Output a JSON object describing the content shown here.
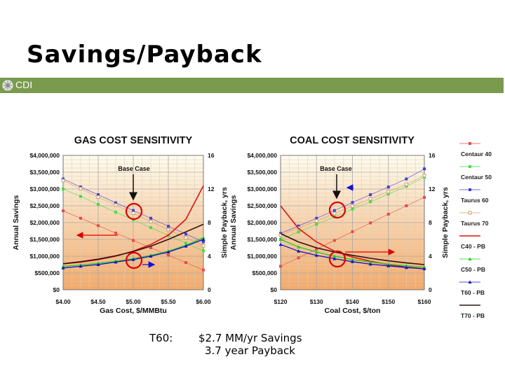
{
  "slide_title": "Savings/Payback",
  "logo_text": "CDI",
  "note": {
    "label": "T60:",
    "line1": "$2.7 MM/yr Savings",
    "line2": "3.7 year Payback"
  },
  "legend": {
    "entries": [
      {
        "name": "Centaur 40",
        "color": "#e84a4a",
        "marker": "square"
      },
      {
        "name": "Centaur 50",
        "color": "#44dd44",
        "marker": "square"
      },
      {
        "name": "Taurus 60",
        "color": "#4040dd",
        "marker": "square"
      },
      {
        "name": "Taurus 70",
        "color": "#c8a070",
        "marker": "hollow-square"
      },
      {
        "name": "C40 - PB",
        "color": "#dd1111",
        "marker": "line"
      },
      {
        "name": "C50 - PB",
        "color": "#22cc22",
        "marker": "triangle"
      },
      {
        "name": "T60 - PB",
        "color": "#1111cc",
        "marker": "triangle"
      },
      {
        "name": "T70 - PB",
        "color": "#331111",
        "marker": "line"
      }
    ]
  },
  "colors": {
    "plot_top": "#fffcee",
    "plot_bottom": "#f2a868",
    "grid": "#bbbbbb",
    "annotation_red": "#dd0000",
    "annotation_blue": "#1111dd",
    "annotation_black": "#111111"
  },
  "chart_data": [
    {
      "type": "line",
      "title": "GAS COST SENSITIVITY",
      "xlabel": "Gas Cost, $/MMBtu",
      "ylabel": "Annual Savings",
      "y2label": "Simple Payback, yrs",
      "x": [
        4.0,
        4.25,
        4.5,
        4.75,
        5.0,
        5.25,
        5.5,
        5.75,
        6.0
      ],
      "xticks": [
        4.0,
        4.5,
        5.0,
        5.5,
        6.0
      ],
      "xtick_labels": [
        "$4.00",
        "$4.50",
        "$5.00",
        "$5.50",
        "$6.00"
      ],
      "xlim": [
        4.0,
        6.0
      ],
      "ylim": [
        0,
        4000000
      ],
      "yticks": [
        0,
        500000,
        1000000,
        1500000,
        2000000,
        2500000,
        3000000,
        3500000,
        4000000
      ],
      "ytick_labels": [
        "$0",
        "$500,000",
        "$1,000,000",
        "$1,500,000",
        "$2,000,000",
        "$2,500,000",
        "$3,000,000",
        "$3,500,000",
        "$4,000,000"
      ],
      "y2lim": [
        0,
        16
      ],
      "y2ticks": [
        0,
        4,
        8,
        12,
        16
      ],
      "y2tick_labels": [
        "0",
        "4",
        "8",
        "12",
        "16"
      ],
      "annotation": "Base Case",
      "series": [
        {
          "name": "Centaur 40",
          "axis": "left",
          "values": [
            2350000,
            2130000,
            1910000,
            1690000,
            1470000,
            1250000,
            1030000,
            810000,
            590000
          ]
        },
        {
          "name": "Centaur 50",
          "axis": "left",
          "values": [
            3000000,
            2780000,
            2540000,
            2310000,
            2080000,
            1850000,
            1620000,
            1390000,
            1160000
          ]
        },
        {
          "name": "Taurus 60",
          "axis": "left",
          "values": [
            3300000,
            3060000,
            2830000,
            2590000,
            2360000,
            2130000,
            1890000,
            1660000,
            1430000
          ]
        },
        {
          "name": "Taurus 70",
          "axis": "left",
          "values": [
            3250000,
            3010000,
            2760000,
            2520000,
            2280000,
            2030000,
            1790000,
            1550000,
            1310000
          ]
        },
        {
          "name": "C40 - PB",
          "axis": "right",
          "values": [
            3.1,
            3.3,
            3.6,
            4.0,
            4.6,
            5.4,
            6.5,
            8.4,
            12.4
          ]
        },
        {
          "name": "C50 - PB",
          "axis": "right",
          "values": [
            2.8,
            2.95,
            3.15,
            3.4,
            3.7,
            4.1,
            4.6,
            5.3,
            6.2
          ]
        },
        {
          "name": "T60 - PB",
          "axis": "right",
          "values": [
            2.6,
            2.8,
            3.0,
            3.3,
            3.6,
            4.0,
            4.5,
            5.2,
            6.0
          ]
        },
        {
          "name": "T70 - PB",
          "axis": "right",
          "values": [
            3.1,
            3.35,
            3.65,
            4.05,
            4.55,
            5.2,
            6.0,
            6.9,
            7.8
          ]
        }
      ]
    },
    {
      "type": "line",
      "title": "COAL COST SENSITIVITY",
      "xlabel": "Coal Cost, $/ton",
      "ylabel": "Annual Savings",
      "y2label": "Simple Payback, yrs",
      "x": [
        120,
        125,
        130,
        135,
        140,
        145,
        150,
        155,
        160
      ],
      "xticks": [
        120,
        130,
        140,
        150,
        160
      ],
      "xtick_labels": [
        "$120",
        "$130",
        "$140",
        "$150",
        "$160"
      ],
      "xlim": [
        120,
        160
      ],
      "ylim": [
        0,
        4000000
      ],
      "yticks": [
        0,
        500000,
        1000000,
        1500000,
        2000000,
        2500000,
        3000000,
        3500000,
        4000000
      ],
      "ytick_labels": [
        "$0",
        "$500,000",
        "$1,000,000",
        "$1,500,000",
        "$2,000,000",
        "$2,500,000",
        "$3,000,000",
        "$3,500,000",
        "$4,000,000"
      ],
      "y2lim": [
        0,
        16
      ],
      "y2ticks": [
        0,
        4,
        8,
        12,
        16
      ],
      "y2tick_labels": [
        "0",
        "4",
        "8",
        "12",
        "16"
      ],
      "annotation": "Base Case",
      "series": [
        {
          "name": "Centaur 40",
          "axis": "left",
          "values": [
            700000,
            950000,
            1210000,
            1470000,
            1730000,
            1990000,
            2250000,
            2500000,
            2750000
          ]
        },
        {
          "name": "Centaur 50",
          "axis": "left",
          "values": [
            1500000,
            1720000,
            1950000,
            2170000,
            2400000,
            2620000,
            2850000,
            3080000,
            3350000
          ]
        },
        {
          "name": "Taurus 60",
          "axis": "left",
          "values": [
            1680000,
            1900000,
            2130000,
            2360000,
            2600000,
            2830000,
            3060000,
            3300000,
            3600000
          ]
        },
        {
          "name": "Taurus 70",
          "axis": "left",
          "values": [
            1630000,
            1840000,
            2050000,
            2270000,
            2490000,
            2710000,
            2920000,
            3140000,
            3400000
          ]
        },
        {
          "name": "C40 - PB",
          "axis": "right",
          "values": [
            10.0,
            7.3,
            5.7,
            4.6,
            3.9,
            3.4,
            3.0,
            2.7,
            2.5
          ]
        },
        {
          "name": "C50 - PB",
          "axis": "right",
          "values": [
            6.0,
            5.1,
            4.5,
            4.0,
            3.6,
            3.3,
            3.05,
            2.85,
            2.7
          ]
        },
        {
          "name": "T60 - PB",
          "axis": "right",
          "values": [
            5.4,
            4.6,
            4.1,
            3.7,
            3.35,
            3.05,
            2.85,
            2.65,
            2.5
          ]
        },
        {
          "name": "T70 - PB",
          "axis": "right",
          "values": [
            6.7,
            5.7,
            5.0,
            4.5,
            4.1,
            3.75,
            3.45,
            3.2,
            3.0
          ]
        }
      ]
    }
  ]
}
